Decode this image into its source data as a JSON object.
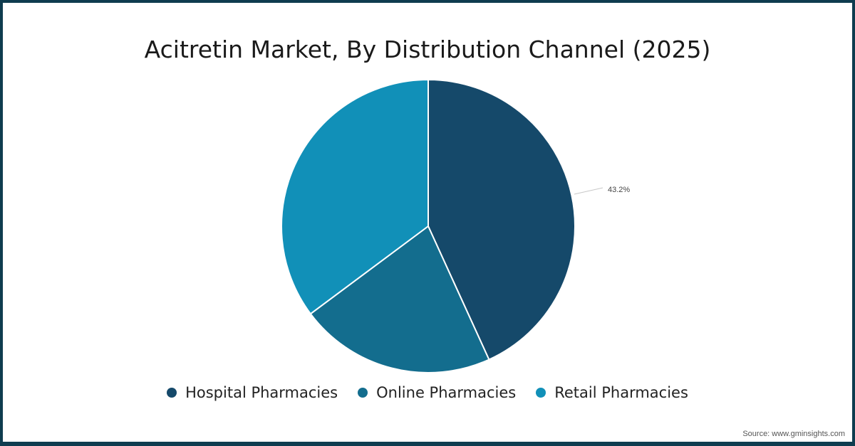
{
  "title": "Acitretin Market, By Distribution Channel (2025)",
  "source": "Source: www.gminsights.com",
  "legend": [
    {
      "label": "Hospital Pharmacies",
      "color": "#15496a"
    },
    {
      "label": "Online Pharmacies",
      "color": "#136d8e"
    },
    {
      "label": "Retail Pharmacies",
      "color": "#1190b8"
    }
  ],
  "data_label": "43.2%",
  "colors": {
    "border": "#0f3c4f",
    "slice_stroke": "#ffffff"
  },
  "chart_data": {
    "type": "pie",
    "title": "Acitretin Market, By Distribution Channel (2025)",
    "categories": [
      "Hospital Pharmacies",
      "Online Pharmacies",
      "Retail Pharmacies"
    ],
    "values": [
      43.2,
      21.6,
      35.2
    ],
    "unit": "%",
    "labeled_values": {
      "Hospital Pharmacies": "43.2%"
    },
    "colors": [
      "#15496a",
      "#136d8e",
      "#1190b8"
    ],
    "start_angle": "12 o'clock, clockwise",
    "legend_position": "bottom"
  }
}
